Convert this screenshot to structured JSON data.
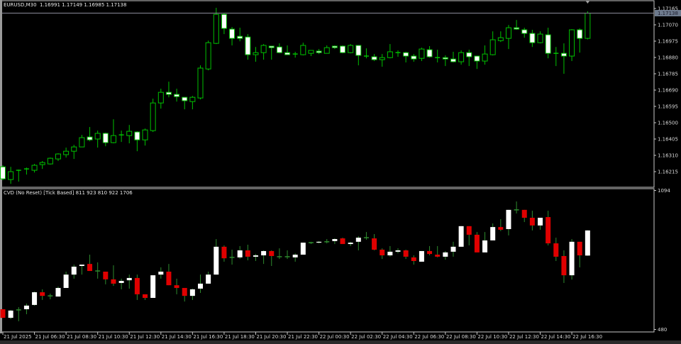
{
  "main_pane": {
    "symbol_header": "EURUSD,M30",
    "ohlc_header": "1.16991 1.17149 1.16985 1.17138",
    "current_price": "1.17138",
    "price_labels": [
      "1.17165",
      "1.17070",
      "1.16975",
      "1.16880",
      "1.16785",
      "1.16690",
      "1.16595",
      "1.16500",
      "1.16405",
      "1.16310",
      "1.16215"
    ],
    "colors": {
      "background": "#000000",
      "bull_outline": "#00c000",
      "bull_body": "#000000",
      "bear_body": "#ffffff",
      "price_line": "#8a8a99"
    }
  },
  "indicator_pane": {
    "header": "CVD (No Reset) [Tick Based] 811 923 810 922 1706",
    "axis_labels": [
      "1094",
      "480"
    ],
    "colors": {
      "up": "#ffffff",
      "down": "#e00000",
      "wick": "#2e8b2e"
    }
  },
  "time_axis": [
    "21 Jul 2025",
    "21 Jul 06:30",
    "21 Jul 08:30",
    "21 Jul 10:30",
    "21 Jul 12:30",
    "21 Jul 14:30",
    "21 Jul 16:30",
    "21 Jul 18:30",
    "21 Jul 20:30",
    "21 Jul 22:30",
    "22 Jul 00:30",
    "22 Jul 02:30",
    "22 Jul 04:30",
    "22 Jul 06:30",
    "22 Jul 08:30",
    "22 Jul 10:30",
    "22 Jul 12:30",
    "22 Jul 14:30",
    "22 Jul 16:30"
  ],
  "chart_data": [
    {
      "type": "candlestick",
      "name": "EURUSD,M30",
      "ylim": [
        1.1612,
        1.1721
      ],
      "ohlc": [
        [
          1.16243,
          1.16252,
          1.16165,
          1.16173
        ],
        [
          1.16169,
          1.16243,
          1.16144,
          1.16215
        ],
        [
          1.16219,
          1.16227,
          1.16157,
          1.16223
        ],
        [
          1.16227,
          1.16239,
          1.16198,
          1.16231
        ],
        [
          1.16223,
          1.1626,
          1.1621,
          1.16252
        ],
        [
          1.16256,
          1.16277,
          1.16231,
          1.16268
        ],
        [
          1.1626,
          1.16297,
          1.16256,
          1.16293
        ],
        [
          1.16289,
          1.16322,
          1.16277,
          1.16318
        ],
        [
          1.16314,
          1.16355,
          1.16297,
          1.16334
        ],
        [
          1.16334,
          1.16371,
          1.16289,
          1.16359
        ],
        [
          1.16359,
          1.16429,
          1.16359,
          1.16413
        ],
        [
          1.16417,
          1.16475,
          1.16392,
          1.164
        ],
        [
          1.16405,
          1.16454,
          1.16355,
          1.16438
        ],
        [
          1.16438,
          1.16442,
          1.16363,
          1.16384
        ],
        [
          1.16384,
          1.1652,
          1.1638,
          1.16425
        ],
        [
          1.16425,
          1.16454,
          1.16388,
          1.16429
        ],
        [
          1.16425,
          1.16487,
          1.1638,
          1.1645
        ],
        [
          1.16446,
          1.1645,
          1.16334,
          1.164
        ],
        [
          1.164,
          1.16466,
          1.16367,
          1.16458
        ],
        [
          1.16454,
          1.1664,
          1.16446,
          1.16615
        ],
        [
          1.16615,
          1.16698,
          1.16582,
          1.16677
        ],
        [
          1.16677,
          1.16739,
          1.16648,
          1.16665
        ],
        [
          1.16665,
          1.16698,
          1.16623,
          1.16652
        ],
        [
          1.16648,
          1.16648,
          1.16578,
          1.16628
        ],
        [
          1.16623,
          1.16656,
          1.16578,
          1.16648
        ],
        [
          1.16644,
          1.16834,
          1.16636,
          1.16818
        ],
        [
          1.16813,
          1.16978,
          1.16805,
          1.16966
        ],
        [
          1.16962,
          1.17169,
          1.16958,
          1.17131
        ],
        [
          1.17131,
          1.1714,
          1.17016,
          1.17049
        ],
        [
          1.17045,
          1.17057,
          1.1695,
          1.16991
        ],
        [
          1.17003,
          1.17053,
          1.16974,
          1.16991
        ],
        [
          1.16999,
          1.17016,
          1.16867,
          1.16896
        ],
        [
          1.16896,
          1.16941,
          1.16855,
          1.16908
        ],
        [
          1.16908,
          1.16958,
          1.16867,
          1.1695
        ],
        [
          1.16946,
          1.16946,
          1.16867,
          1.16937
        ],
        [
          1.16941,
          1.16962,
          1.16904,
          1.16908
        ],
        [
          1.16908,
          1.1695,
          1.16896,
          1.16896
        ],
        [
          1.169,
          1.16913,
          1.16879,
          1.169
        ],
        [
          1.16896,
          1.16966,
          1.16892,
          1.1695
        ],
        [
          1.16904,
          1.16921,
          1.16888,
          1.16921
        ],
        [
          1.16917,
          1.16929,
          1.169,
          1.16908
        ],
        [
          1.16904,
          1.1695,
          1.16904,
          1.16937
        ],
        [
          1.16946,
          1.1695,
          1.16929,
          1.16937
        ],
        [
          1.16946,
          1.1695,
          1.16904,
          1.16908
        ],
        [
          1.16908,
          1.16958,
          1.16904,
          1.1695
        ],
        [
          1.1695,
          1.1695,
          1.16834,
          1.16892
        ],
        [
          1.16888,
          1.16933,
          1.16875,
          1.16888
        ],
        [
          1.16884,
          1.169,
          1.16859,
          1.16867
        ],
        [
          1.16867,
          1.169,
          1.16826,
          1.16879
        ],
        [
          1.16879,
          1.16958,
          1.16875,
          1.16913
        ],
        [
          1.16908,
          1.16921,
          1.16884,
          1.16908
        ],
        [
          1.16908,
          1.16913,
          1.16851,
          1.16888
        ],
        [
          1.16888,
          1.169,
          1.16855,
          1.16871
        ],
        [
          1.16875,
          1.16937,
          1.16859,
          1.16929
        ],
        [
          1.16925,
          1.16946,
          1.16879,
          1.16884
        ],
        [
          1.16879,
          1.16925,
          1.16851,
          1.16879
        ],
        [
          1.16879,
          1.16892,
          1.1683,
          1.16871
        ],
        [
          1.16871,
          1.16913,
          1.16851,
          1.16855
        ],
        [
          1.16855,
          1.16921,
          1.16838,
          1.16908
        ],
        [
          1.16908,
          1.16925,
          1.1683,
          1.16884
        ],
        [
          1.16888,
          1.16888,
          1.16813,
          1.16859
        ],
        [
          1.16859,
          1.1695,
          1.16838,
          1.169
        ],
        [
          1.16896,
          1.17032,
          1.16892,
          1.16983
        ],
        [
          1.16978,
          1.17032,
          1.1697,
          1.16995
        ],
        [
          1.16991,
          1.17069,
          1.16929,
          1.17053
        ],
        [
          1.17053,
          1.17098,
          1.17041,
          1.17045
        ],
        [
          1.17041,
          1.17053,
          1.16995,
          1.1702
        ],
        [
          1.1702,
          1.17041,
          1.16941,
          1.16966
        ],
        [
          1.16966,
          1.17032,
          1.16962,
          1.17016
        ],
        [
          1.17012,
          1.17053,
          1.16875,
          1.16904
        ],
        [
          1.16904,
          1.16941,
          1.1683,
          1.16904
        ],
        [
          1.16904,
          1.16962,
          1.16785,
          1.16888
        ],
        [
          1.16888,
          1.17045,
          1.16859,
          1.17041
        ],
        [
          1.17041,
          1.17049,
          1.16908,
          1.16991
        ],
        [
          1.16991,
          1.17149,
          1.16985,
          1.17138
        ]
      ]
    },
    {
      "type": "candlestick",
      "name": "CVD (No Reset) [Tick Based]",
      "ylim": [
        480,
        1094
      ],
      "ohlc": [
        [
          574,
          574,
          536,
          536
        ],
        [
          536,
          571,
          530,
          568
        ],
        [
          571,
          583,
          521,
          571
        ],
        [
          574,
          599,
          552,
          590
        ],
        [
          593,
          652,
          590,
          649
        ],
        [
          649,
          662,
          615,
          633
        ],
        [
          633,
          643,
          618,
          633
        ],
        [
          630,
          674,
          630,
          668
        ],
        [
          668,
          740,
          668,
          727
        ],
        [
          727,
          771,
          709,
          762
        ],
        [
          765,
          771,
          727,
          771
        ],
        [
          774,
          815,
          743,
          743
        ],
        [
          743,
          781,
          709,
          743
        ],
        [
          740,
          740,
          684,
          706
        ],
        [
          706,
          768,
          677,
          687
        ],
        [
          690,
          709,
          662,
          699
        ],
        [
          702,
          727,
          665,
          712
        ],
        [
          712,
          727,
          615,
          640
        ],
        [
          640,
          640,
          615,
          624
        ],
        [
          624,
          724,
          624,
          724
        ],
        [
          727,
          759,
          709,
          740
        ],
        [
          740,
          774,
          680,
          680
        ],
        [
          680,
          709,
          640,
          668
        ],
        [
          668,
          668,
          608,
          633
        ],
        [
          633,
          665,
          615,
          662
        ],
        [
          665,
          727,
          646,
          687
        ],
        [
          687,
          740,
          687,
          727
        ],
        [
          727,
          884,
          727,
          850
        ],
        [
          850,
          856,
          784,
          799
        ],
        [
          803,
          837,
          771,
          803
        ],
        [
          803,
          853,
          796,
          834
        ],
        [
          834,
          859,
          790,
          806
        ],
        [
          806,
          818,
          787,
          812
        ],
        [
          812,
          834,
          774,
          831
        ],
        [
          831,
          834,
          765,
          809
        ],
        [
          806,
          843,
          796,
          806
        ],
        [
          806,
          834,
          796,
          806
        ],
        [
          803,
          821,
          784,
          815
        ],
        [
          815,
          868,
          815,
          868
        ],
        [
          868,
          872,
          862,
          868
        ],
        [
          868,
          875,
          865,
          872
        ],
        [
          872,
          884,
          865,
          872
        ],
        [
          875,
          887,
          862,
          884
        ],
        [
          887,
          890,
          862,
          862
        ],
        [
          862,
          872,
          853,
          868
        ],
        [
          872,
          897,
          834,
          890
        ],
        [
          890,
          915,
          881,
          890
        ],
        [
          887,
          906,
          834,
          837
        ],
        [
          837,
          843,
          796,
          812
        ],
        [
          812,
          853,
          806,
          828
        ],
        [
          828,
          843,
          821,
          834
        ],
        [
          834,
          837,
          796,
          806
        ],
        [
          803,
          812,
          771,
          787
        ],
        [
          784,
          831,
          784,
          831
        ],
        [
          831,
          853,
          812,
          818
        ],
        [
          815,
          853,
          803,
          806
        ],
        [
          806,
          831,
          793,
          825
        ],
        [
          828,
          872,
          806,
          850
        ],
        [
          850,
          941,
          850,
          941
        ],
        [
          941,
          941,
          856,
          903
        ],
        [
          903,
          915,
          825,
          825
        ],
        [
          825,
          915,
          825,
          878
        ],
        [
          878,
          953,
          878,
          937
        ],
        [
          937,
          972,
          919,
          925
        ],
        [
          928,
          1013,
          900,
          1013
        ],
        [
          1013,
          1050,
          997,
          1013
        ],
        [
          1013,
          1013,
          959,
          978
        ],
        [
          978,
          1009,
          922,
          944
        ],
        [
          944,
          978,
          925,
          978
        ],
        [
          981,
          1009,
          856,
          865
        ],
        [
          865,
          890,
          787,
          806
        ],
        [
          809,
          834,
          690,
          724
        ],
        [
          724,
          884,
          705,
          872
        ],
        [
          872,
          872,
          759,
          812
        ],
        [
          811,
          923,
          810,
          922
        ]
      ]
    }
  ]
}
